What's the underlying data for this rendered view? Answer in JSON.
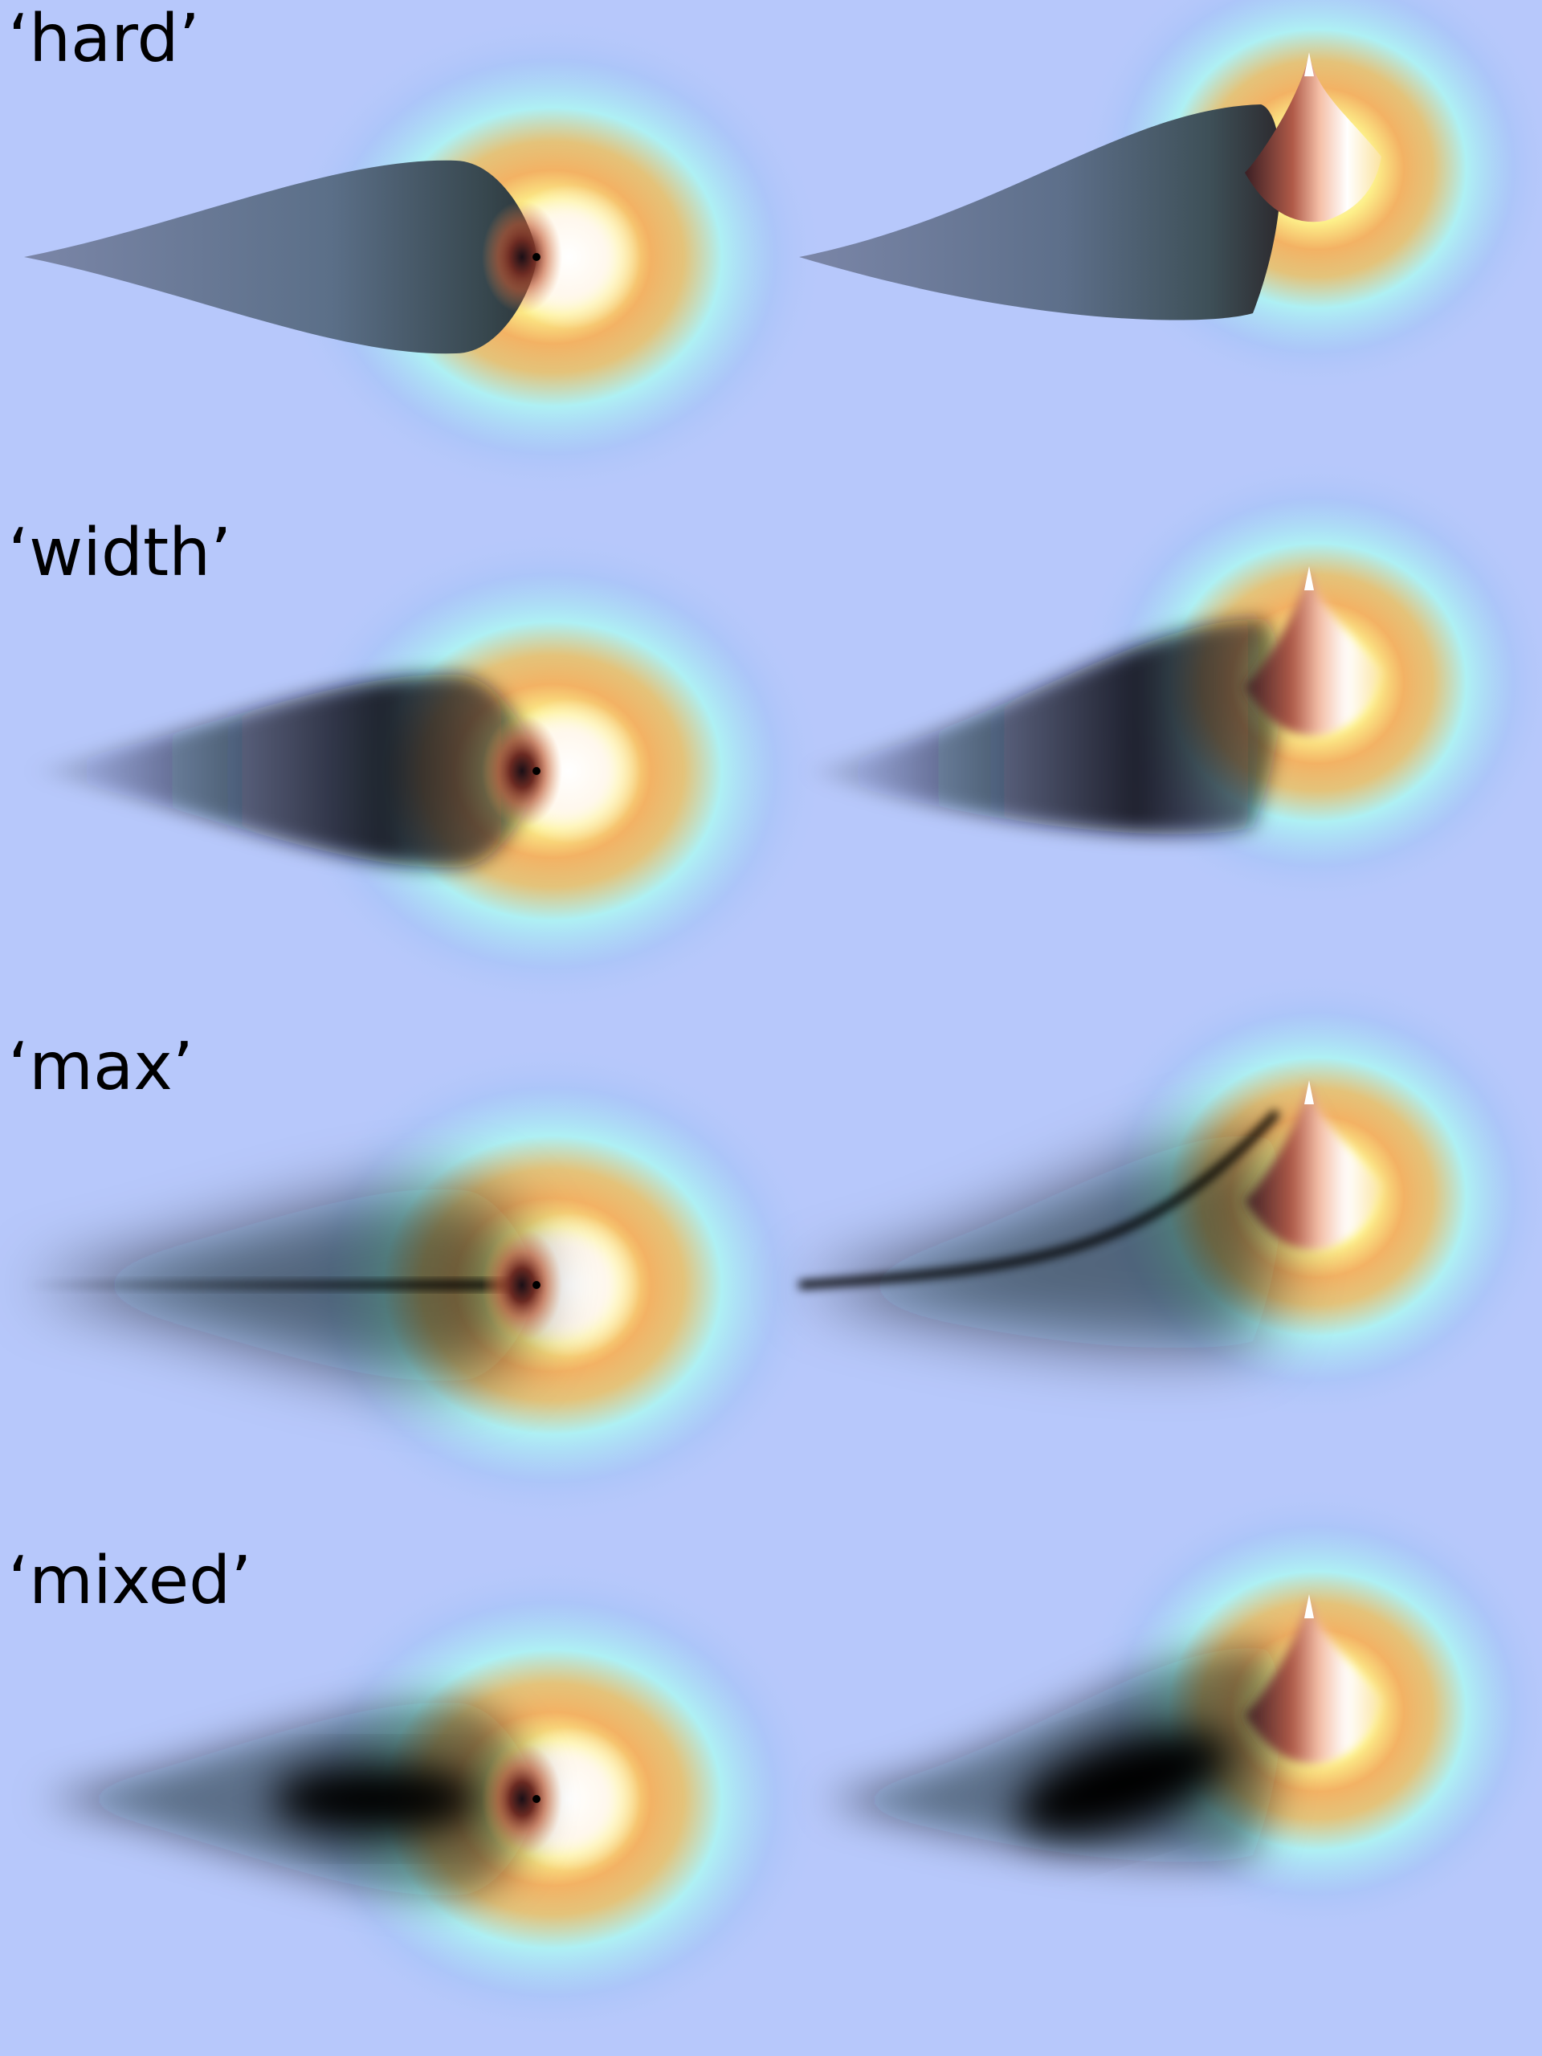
{
  "rows": [
    {
      "label": "‘hard’"
    },
    {
      "label": "‘width’"
    },
    {
      "label": "‘max’"
    },
    {
      "label": "‘mixed’"
    }
  ],
  "colors": {
    "background": "#b7c8fb",
    "halo_inner": "#ffffff",
    "halo_yellow": "#fdf08a",
    "halo_orange": "#f39a4e",
    "halo_red": "#c85a3a",
    "halo_cyan": "#aef0f4",
    "halo_blue": "#a8c4f8",
    "shadow_hard": "#6b7896",
    "shadow_dark": "#0b0f1a"
  }
}
